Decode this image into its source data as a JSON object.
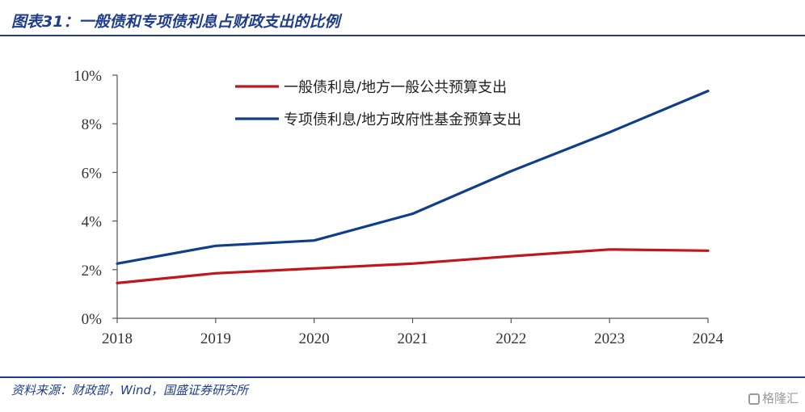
{
  "header": {
    "title": "图表31：一般债和专项债利息占财政支出的比例"
  },
  "footer": {
    "source": "资料来源：财政部，Wind，国盛证券研究所",
    "watermark": "格隆汇"
  },
  "colors": {
    "brand": "#1f3d8a",
    "series_general": "#c0161c",
    "series_special": "#0f3f8c"
  },
  "chart_data": {
    "type": "line",
    "x": [
      "2018",
      "2019",
      "2020",
      "2021",
      "2022",
      "2023",
      "2024"
    ],
    "ylim": [
      0,
      10
    ],
    "yticks": [
      "0%",
      "2%",
      "4%",
      "6%",
      "8%",
      "10%"
    ],
    "ytick_values": [
      0,
      2,
      4,
      6,
      8,
      10
    ],
    "legend_position": "top",
    "grid": false,
    "series": [
      {
        "name": "一般债利息/地方一般公共预算支出",
        "color": "#c0161c",
        "values": [
          1.45,
          1.85,
          2.05,
          2.25,
          2.55,
          2.83,
          2.78
        ]
      },
      {
        "name": "专项债利息/地方政府性基金预算支出",
        "color": "#0f3f8c",
        "values": [
          2.25,
          2.98,
          3.2,
          4.3,
          6.05,
          7.65,
          9.35
        ]
      }
    ]
  }
}
